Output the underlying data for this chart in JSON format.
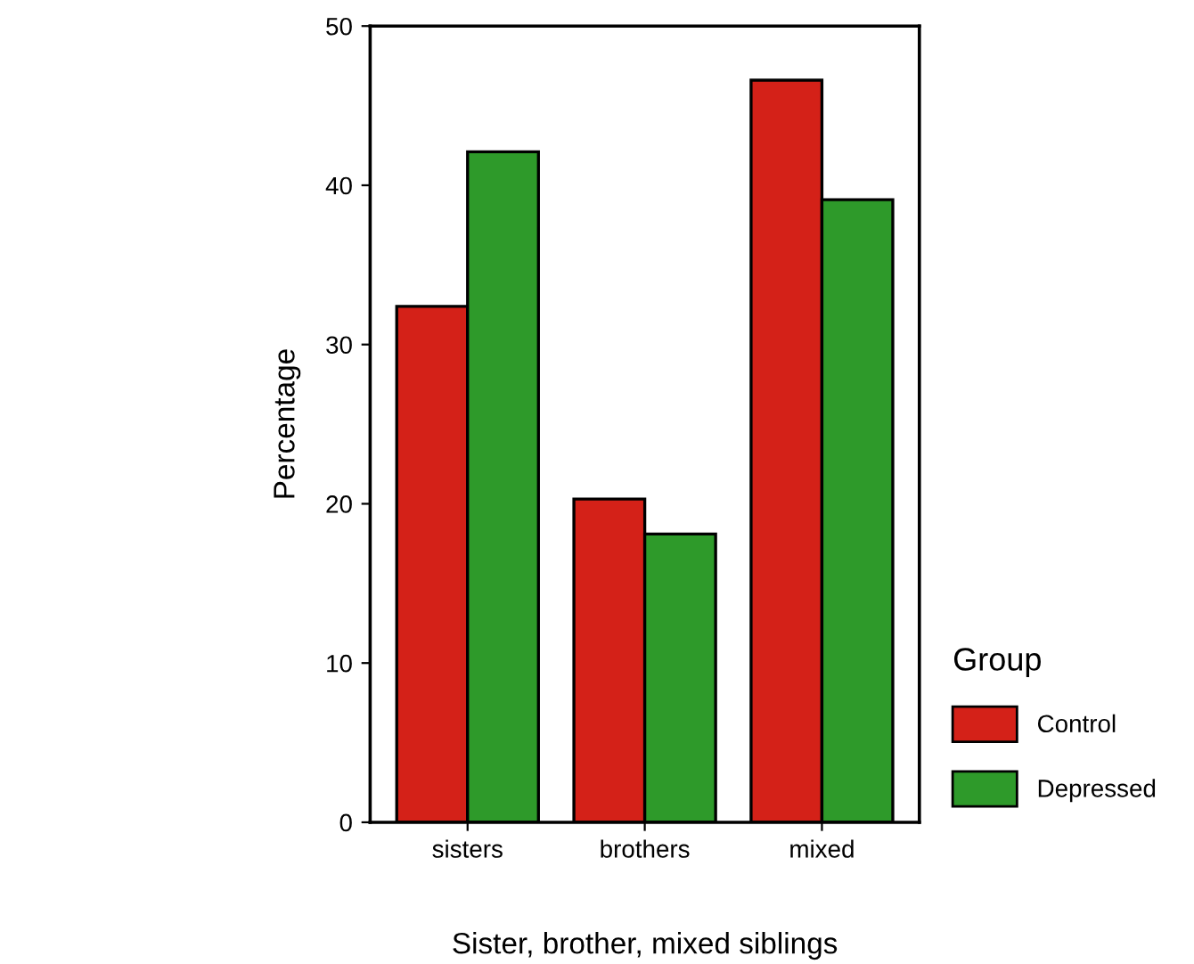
{
  "chart_data": {
    "type": "bar",
    "xlabel": "Sister, brother, mixed siblings",
    "ylabel": "Percentage",
    "legend_title": "Group",
    "categories": [
      "sisters",
      "brothers",
      "mixed"
    ],
    "series": [
      {
        "name": "Control",
        "color": "#d42118",
        "values": [
          32.4,
          20.3,
          46.6
        ]
      },
      {
        "name": "Depressed",
        "color": "#2e9a2a",
        "values": [
          42.1,
          18.1,
          39.1
        ]
      }
    ],
    "ylim": [
      0,
      50
    ],
    "yticks": [
      0,
      10,
      20,
      30,
      40,
      50
    ],
    "grid": false,
    "legend": "right"
  }
}
